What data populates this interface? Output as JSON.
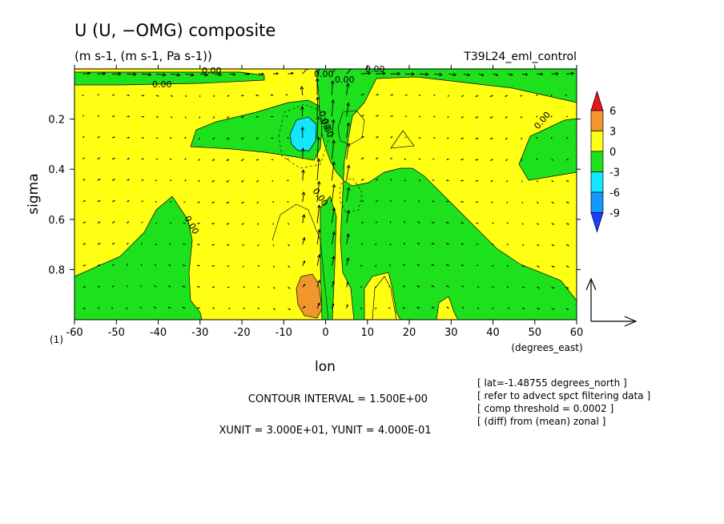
{
  "header": {
    "title": "U (U, −OMG) composite",
    "subtitle": "(m s-1, (m s-1, Pa s-1))",
    "run_name": "T39L24_eml_control"
  },
  "footer": {
    "contour_interval": "CONTOUR INTERVAL = 1.500E+00",
    "vector_units": "XUNIT = 3.000E+01, YUNIT = 4.000E-01",
    "notes": [
      "[ lat=-1.48755 degrees_north ]",
      "[ refer to advect spct filtering data ]",
      "[ comp threshold = 0.0002 ]",
      "[ (diff) from (mean) zonal ]"
    ]
  },
  "chart_data": {
    "type": "contour",
    "xlabel": "lon",
    "xunits": "(degrees_east)",
    "ylabel": "sigma",
    "corner_label": "(1)",
    "xlim": [
      -60,
      60
    ],
    "ylim": [
      0.0,
      1.0
    ],
    "y_inverted": true,
    "x_ticks": [
      -60,
      -50,
      -40,
      -30,
      -20,
      -10,
      0,
      10,
      20,
      30,
      40,
      50,
      60
    ],
    "x_tick_labels": [
      "-60",
      "-50",
      "-40",
      "-30",
      "-20",
      "-10",
      "0",
      "10",
      "20",
      "30",
      "40",
      "50",
      "60"
    ],
    "y_ticks": [
      0.2,
      0.4,
      0.6,
      0.8
    ],
    "y_tick_labels": [
      "0.2",
      "0.4",
      "0.6",
      "0.8"
    ],
    "contour_labels": [
      "0.00",
      "0.00",
      "0.00",
      "0.00",
      "0.00",
      "0.00",
      "0.00",
      "0.00",
      "0.00",
      "0.00"
    ],
    "colorbar": {
      "levels": [
        6,
        3,
        0,
        -3,
        -6,
        -9
      ],
      "level_labels": [
        "6",
        "3",
        "0",
        "-3",
        "-6",
        "-9"
      ],
      "colors": [
        "#e8141e",
        "#f0962d",
        "#ffff14",
        "#1ee11e",
        "#14e6ff",
        "#1496ff",
        "#1e3cff"
      ]
    },
    "fill_colors": {
      "pos_0_3": "#ffff14",
      "pos_3_6": "#f0962d",
      "neg_0_3": "#1ee11e",
      "neg_3_6": "#14e6ff"
    }
  }
}
